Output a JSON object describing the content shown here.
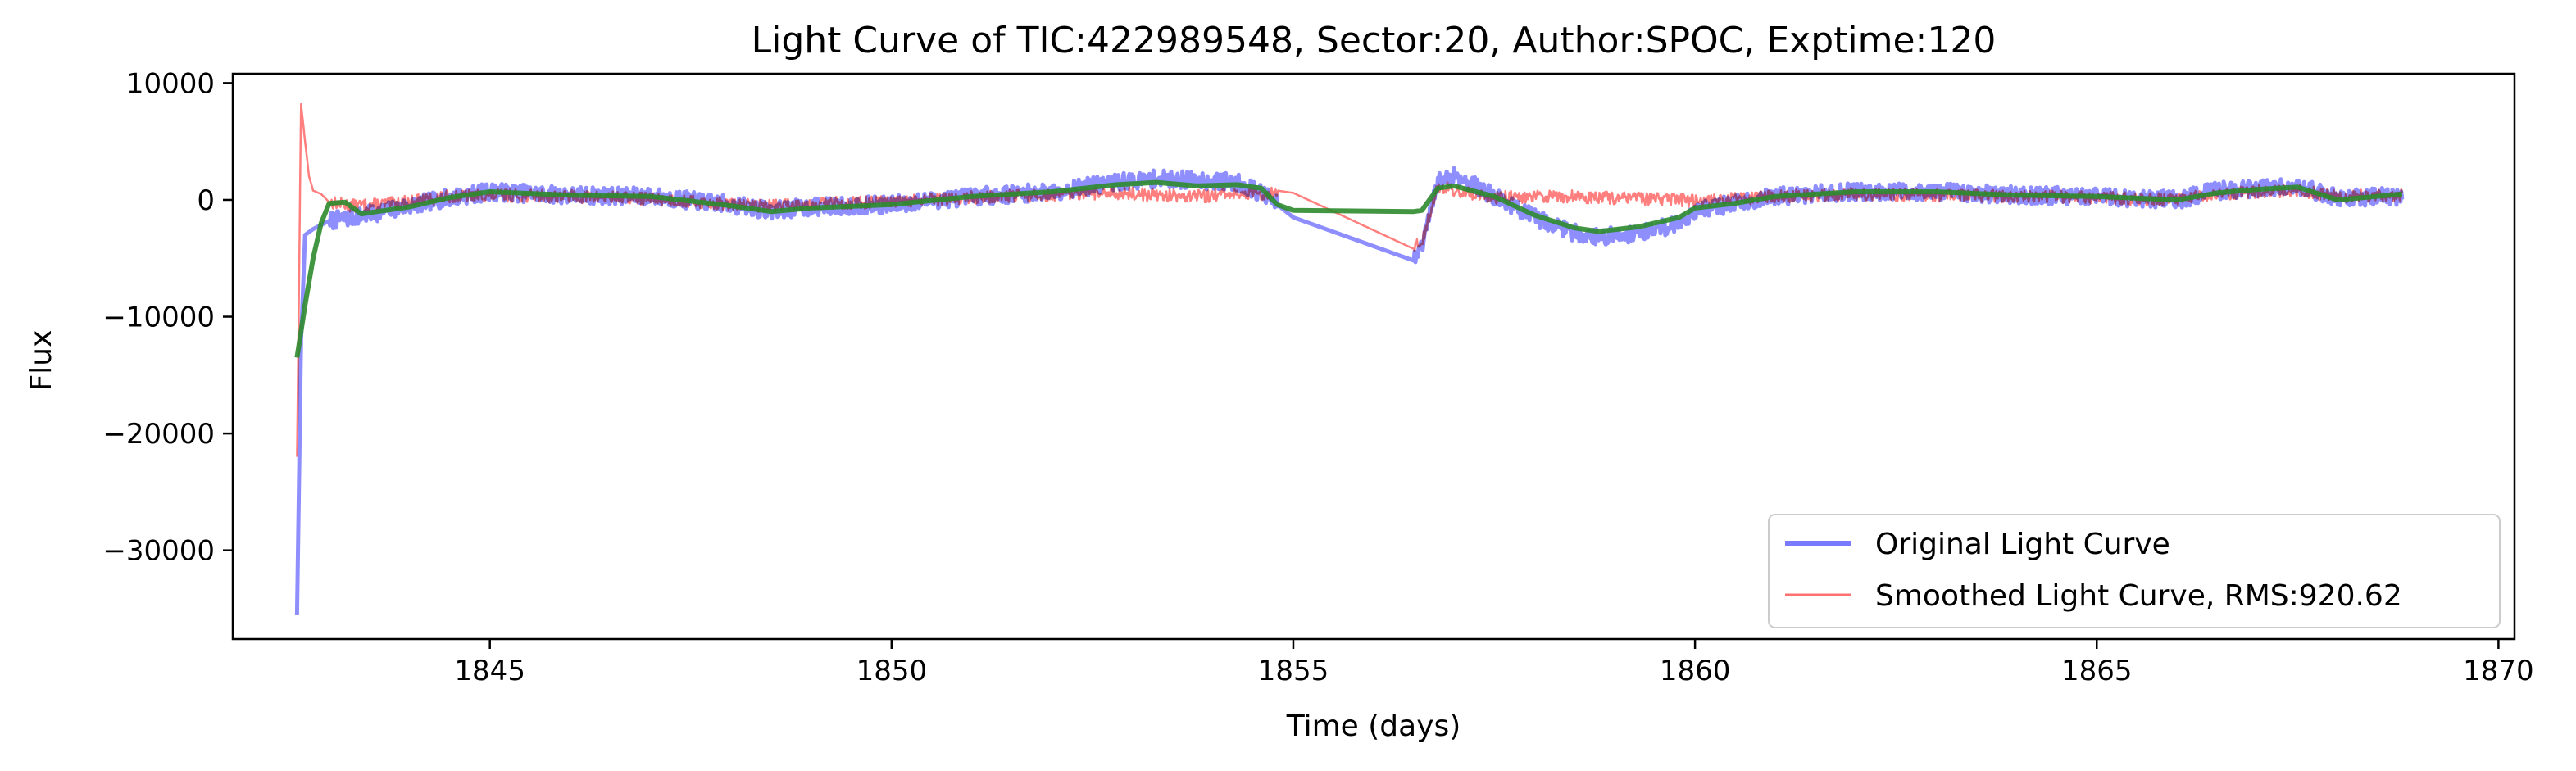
{
  "chart_data": {
    "type": "line",
    "title": "Light Curve of TIC:422989548, Sector:20, Author:SPOC, Exptime:120",
    "xlabel": "Time (days)",
    "ylabel": "Flux",
    "xlim": [
      1841.8,
      1870.2
    ],
    "ylim": [
      -37600,
      10800
    ],
    "xticks": [
      1845,
      1850,
      1855,
      1860,
      1865,
      1870
    ],
    "yticks": [
      10000,
      0,
      -10000,
      -20000,
      -30000
    ],
    "xtick_labels": [
      "1845",
      "1850",
      "1855",
      "1860",
      "1865",
      "1870"
    ],
    "ytick_labels": [
      "10000",
      "0",
      "−10000",
      "−20000",
      "−30000"
    ],
    "grid": false,
    "legend_placement": "lower-right",
    "series": [
      {
        "name": "Original Light Curve",
        "color": "#7a7aff",
        "x": [
          1842.6,
          1842.65,
          1842.7,
          1842.8,
          1843.0,
          1843.3,
          1843.8,
          1844.5,
          1845.0,
          1846.0,
          1847.0,
          1848.0,
          1848.5,
          1849.0,
          1850.0,
          1851.0,
          1852.0,
          1852.8,
          1853.3,
          1853.8,
          1854.3,
          1854.6,
          1854.8,
          1855.0,
          1856.5,
          1856.6,
          1856.8,
          1857.0,
          1857.5,
          1858.0,
          1858.5,
          1858.8,
          1859.3,
          1859.8,
          1860.0,
          1860.5,
          1861.0,
          1862.0,
          1863.0,
          1864.0,
          1865.0,
          1866.0,
          1866.5,
          1867.0,
          1867.5,
          1868.0,
          1868.8
        ],
        "y": [
          -35500,
          -12000,
          -3000,
          -2500,
          -1800,
          -1500,
          -800,
          200,
          700,
          400,
          300,
          -400,
          -900,
          -600,
          -400,
          300,
          700,
          1500,
          1800,
          1700,
          1500,
          600,
          -400,
          -1500,
          -5200,
          -4000,
          1500,
          2200,
          300,
          -1500,
          -2800,
          -3200,
          -2800,
          -2000,
          -900,
          -300,
          300,
          700,
          700,
          400,
          300,
          0,
          800,
          1000,
          1200,
          200,
          300
        ]
      },
      {
        "name": "Smoothed Light Curve, RMS:920.62",
        "color": "#ff7070",
        "x": [
          1842.6,
          1842.65,
          1842.7,
          1842.75,
          1842.8,
          1842.9,
          1843.0,
          1843.3,
          1843.8,
          1844.5,
          1845.0,
          1846.0,
          1847.0,
          1848.0,
          1848.5,
          1849.0,
          1850.0,
          1851.0,
          1852.0,
          1852.8,
          1853.3,
          1853.8,
          1854.3,
          1854.6,
          1854.8,
          1855.0,
          1856.5,
          1856.6,
          1856.8,
          1857.0,
          1857.5,
          1858.0,
          1858.5,
          1858.8,
          1859.3,
          1859.8,
          1860.0,
          1860.5,
          1861.0,
          1862.0,
          1863.0,
          1864.0,
          1865.0,
          1866.0,
          1866.5,
          1867.0,
          1867.5,
          1868.0,
          1868.8
        ],
        "y": [
          -22000,
          8200,
          5000,
          2000,
          800,
          500,
          -200,
          -500,
          -300,
          300,
          400,
          300,
          100,
          -400,
          -500,
          -300,
          -200,
          200,
          400,
          600,
          400,
          300,
          500,
          400,
          800,
          600,
          -4200,
          -3500,
          1200,
          800,
          200,
          300,
          300,
          200,
          100,
          0,
          -100,
          100,
          300,
          500,
          400,
          300,
          200,
          0,
          500,
          700,
          800,
          300,
          400
        ]
      },
      {
        "name": "",
        "color": "#2e8b2e",
        "x": [
          1842.6,
          1842.7,
          1842.8,
          1842.9,
          1843.0,
          1843.2,
          1843.4,
          1843.6,
          1844.0,
          1844.5,
          1845.0,
          1846.0,
          1847.0,
          1848.0,
          1848.5,
          1849.0,
          1850.0,
          1851.0,
          1852.0,
          1852.8,
          1853.3,
          1853.8,
          1854.3,
          1854.6,
          1854.8,
          1855.0,
          1856.5,
          1856.6,
          1856.8,
          1857.0,
          1857.5,
          1858.0,
          1858.5,
          1858.8,
          1859.3,
          1859.8,
          1860.0,
          1860.5,
          1861.0,
          1862.0,
          1863.0,
          1864.0,
          1865.0,
          1866.0,
          1866.5,
          1867.0,
          1867.5,
          1868.0,
          1868.8
        ],
        "y": [
          -13500,
          -9000,
          -5000,
          -2000,
          -300,
          -200,
          -1200,
          -1000,
          -600,
          200,
          700,
          400,
          300,
          -500,
          -1000,
          -700,
          -400,
          300,
          700,
          1300,
          1500,
          1200,
          1300,
          1000,
          -400,
          -900,
          -1000,
          -900,
          1000,
          1200,
          300,
          -1300,
          -2400,
          -2700,
          -2300,
          -1500,
          -700,
          -300,
          300,
          700,
          700,
          400,
          300,
          0,
          600,
          900,
          1100,
          0,
          500
        ]
      }
    ]
  }
}
